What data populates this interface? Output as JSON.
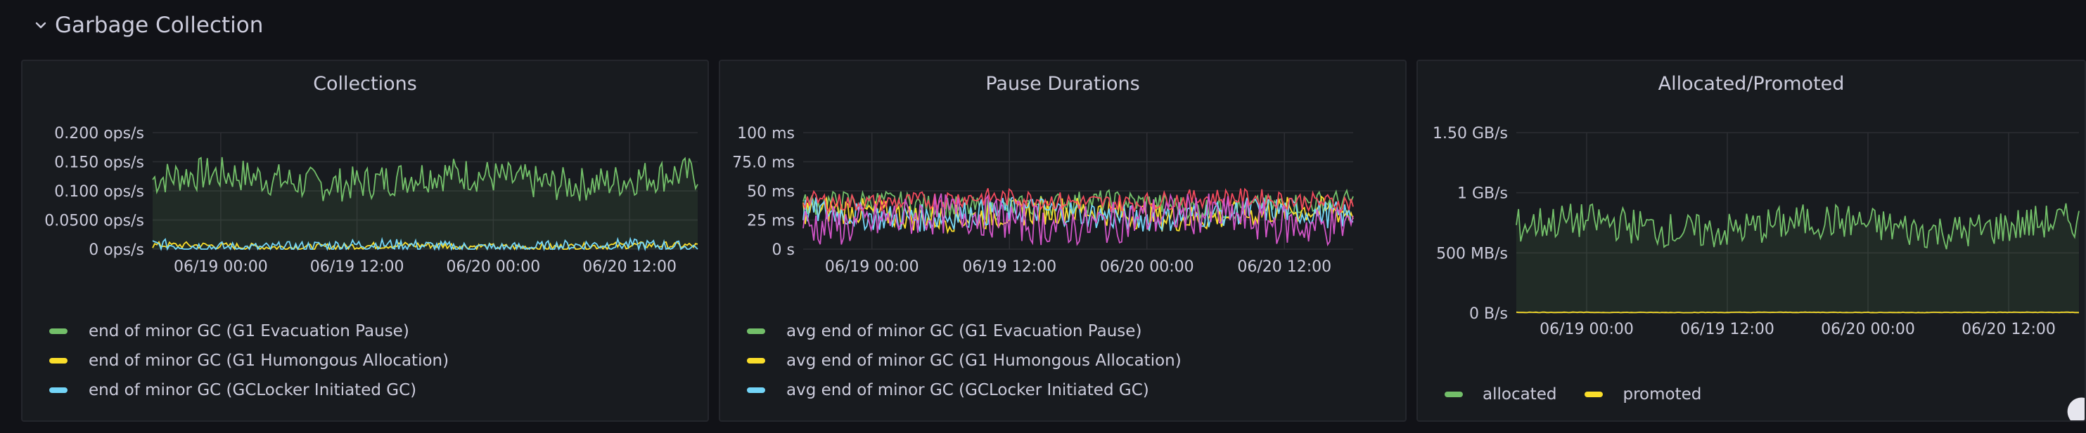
{
  "row": {
    "title": "Garbage Collection",
    "icon": "chevron-down-icon"
  },
  "colors": {
    "green": "#73bf69",
    "yellow": "#fade2a",
    "blue": "#73d5f8",
    "red": "#f2495c",
    "pink": "#d054c6",
    "grid": "#2c2e33",
    "axis_text": "#ccccdc"
  },
  "panels": [
    {
      "title": "Collections",
      "legend": [
        {
          "label": "end of minor GC (G1 Evacuation Pause)",
          "color": "#73bf69"
        },
        {
          "label": "end of minor GC (G1 Humongous Allocation)",
          "color": "#fade2a"
        },
        {
          "label": "end of minor GC (GCLocker Initiated GC)",
          "color": "#73d5f8"
        }
      ]
    },
    {
      "title": "Pause Durations",
      "legend": [
        {
          "label": "avg end of minor GC (G1 Evacuation Pause)",
          "color": "#73bf69"
        },
        {
          "label": "avg end of minor GC (G1 Humongous Allocation)",
          "color": "#fade2a"
        },
        {
          "label": "avg end of minor GC (GCLocker Initiated GC)",
          "color": "#73d5f8"
        }
      ]
    },
    {
      "title": "Allocated/Promoted",
      "legend": [
        {
          "label": "allocated",
          "color": "#73bf69"
        },
        {
          "label": "promoted",
          "color": "#fade2a"
        }
      ]
    }
  ],
  "chart_data": [
    {
      "type": "line",
      "y_ticks": [
        "0.200 ops/s",
        "0.150 ops/s",
        "0.100 ops/s",
        "0.0500 ops/s",
        "0 ops/s"
      ],
      "x_ticks": [
        "06/19 00:00",
        "06/19 12:00",
        "06/20 00:00",
        "06/20 12:00"
      ],
      "ylim": [
        0,
        0.2
      ],
      "grid": true,
      "legend_placement": "bottom",
      "series": [
        {
          "name": "end of minor GC (G1 Evacuation Pause)",
          "color": "#73bf69",
          "base": 0.12,
          "jitter": 0.03,
          "fill": true
        },
        {
          "name": "end of minor GC (G1 Humongous Allocation)",
          "color": "#fade2a",
          "base": 0.005,
          "jitter": 0.006,
          "fill": false
        },
        {
          "name": "end of minor GC (GCLocker Initiated GC)",
          "color": "#73d5f8",
          "base": 0.005,
          "jitter": 0.01,
          "fill": false
        }
      ]
    },
    {
      "type": "line",
      "y_ticks": [
        "100 ms",
        "75.0 ms",
        "50 ms",
        "25 ms",
        "0 s"
      ],
      "x_ticks": [
        "06/19 00:00",
        "06/19 12:00",
        "06/20 00:00",
        "06/20 12:00"
      ],
      "ylim": [
        0,
        100
      ],
      "grid": true,
      "legend_placement": "bottom",
      "series": [
        {
          "name": "avg end of minor GC (G1 Evacuation Pause)",
          "color": "#73bf69",
          "base": 38,
          "jitter": 10,
          "fill": false
        },
        {
          "name": "avg end of minor GC (G1 Humongous Allocation)",
          "color": "#fade2a",
          "base": 30,
          "jitter": 12,
          "fill": false
        },
        {
          "name": "avg end of minor GC (GCLocker Initiated GC)",
          "color": "#73d5f8",
          "base": 30,
          "jitter": 12,
          "fill": false
        },
        {
          "color": "#f2495c",
          "base": 42,
          "jitter": 8,
          "fill": false
        },
        {
          "color": "#d054c6",
          "base": 25,
          "jitter": 18,
          "fill": false
        }
      ]
    },
    {
      "type": "line",
      "y_ticks": [
        "1.50 GB/s",
        "1 GB/s",
        "500 MB/s",
        "0 B/s"
      ],
      "x_ticks": [
        "06/19 00:00",
        "06/19 12:00",
        "06/20 00:00",
        "06/20 12:00"
      ],
      "ylim": [
        0,
        1.5
      ],
      "grid": true,
      "legend_placement": "bottom",
      "series": [
        {
          "name": "allocated",
          "color": "#73bf69",
          "base": 0.72,
          "jitter": 0.15,
          "fill": true
        },
        {
          "name": "promoted",
          "color": "#fade2a",
          "base": 0.005,
          "jitter": 0.002,
          "fill": false
        }
      ]
    }
  ]
}
